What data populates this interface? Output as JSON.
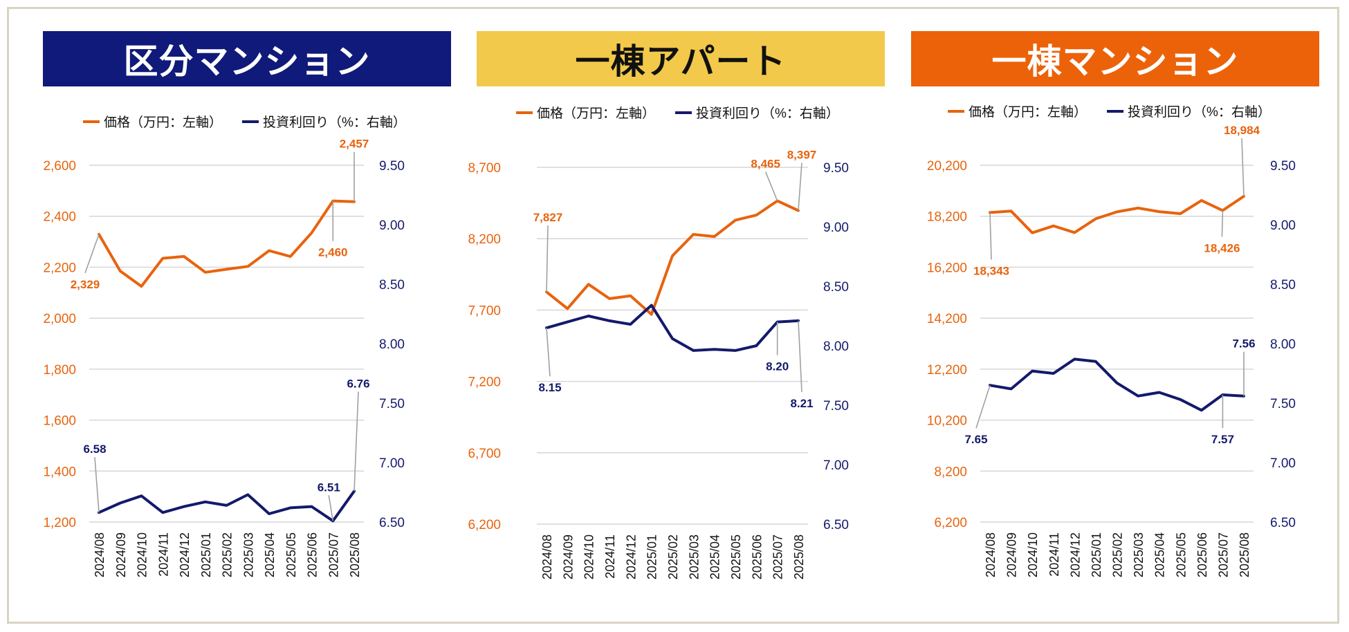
{
  "colors": {
    "frame": "#d9d3c3",
    "price_line": "#e8630d",
    "yield_line": "#131a6b",
    "grid": "#d6d6d6",
    "leader": "#a0a0a0"
  },
  "legend": {
    "price": "価格（万円：左軸）",
    "yield": "投資利回り（%：右軸）"
  },
  "panels": [
    {
      "title": "区分マンション",
      "title_bg": "#0f1a7a",
      "title_color": "#ffffff"
    },
    {
      "title": "一棟アパート",
      "title_bg": "#f2c94a",
      "title_color": "#111111"
    },
    {
      "title": "一棟マンション",
      "title_bg": "#ec6209",
      "title_color": "#ffffff"
    }
  ],
  "chart_data": [
    {
      "type": "line",
      "title": "区分マンション",
      "categories": [
        "2024/08",
        "2024/09",
        "2024/10",
        "2024/11",
        "2024/12",
        "2025/01",
        "2025/02",
        "2025/03",
        "2025/04",
        "2025/05",
        "2025/06",
        "2025/07",
        "2025/08"
      ],
      "left_axis": {
        "ticks": [
          "1,200",
          "1,400",
          "1,600",
          "1,800",
          "2,000",
          "2,200",
          "2,400",
          "2,600"
        ],
        "ylim": [
          1200,
          2600
        ]
      },
      "right_axis": {
        "ticks": [
          "6.50",
          "7.00",
          "7.50",
          "8.00",
          "8.50",
          "9.00",
          "9.50"
        ],
        "ylim": [
          6.5,
          9.5
        ]
      },
      "series": [
        {
          "name": "価格（万円：左軸）",
          "axis": "left",
          "values": [
            2329,
            2185,
            2125,
            2235,
            2242,
            2180,
            2192,
            2203,
            2265,
            2242,
            2335,
            2460,
            2457
          ]
        },
        {
          "name": "投資利回り（%：右軸）",
          "axis": "right",
          "values": [
            6.58,
            6.66,
            6.72,
            6.58,
            6.63,
            6.67,
            6.64,
            6.73,
            6.57,
            6.62,
            6.63,
            6.51,
            6.76
          ]
        }
      ],
      "data_labels": [
        {
          "series": 0,
          "index": 0,
          "text": "2,329"
        },
        {
          "series": 0,
          "index": 11,
          "text": "2,460"
        },
        {
          "series": 0,
          "index": 12,
          "text": "2,457"
        },
        {
          "series": 1,
          "index": 0,
          "text": "6.58"
        },
        {
          "series": 1,
          "index": 11,
          "text": "6.51"
        },
        {
          "series": 1,
          "index": 12,
          "text": "6.76"
        }
      ],
      "grid": true,
      "legend_position": "top"
    },
    {
      "type": "line",
      "title": "一棟アパート",
      "categories": [
        "2024/08",
        "2024/09",
        "2024/10",
        "2024/11",
        "2024/12",
        "2025/01",
        "2025/02",
        "2025/03",
        "2025/04",
        "2025/05",
        "2025/06",
        "2025/07",
        "2025/08"
      ],
      "left_axis": {
        "ticks": [
          "6,200",
          "6,700",
          "7,200",
          "7,700",
          "8,200",
          "8,700"
        ],
        "ylim": [
          6200,
          8700
        ]
      },
      "right_axis": {
        "ticks": [
          "6.50",
          "7.00",
          "7.50",
          "8.00",
          "8.50",
          "9.00",
          "9.50"
        ],
        "ylim": [
          6.5,
          9.5
        ]
      },
      "series": [
        {
          "name": "価格（万円：左軸）",
          "axis": "left",
          "values": [
            7827,
            7710,
            7880,
            7780,
            7800,
            7670,
            8080,
            8230,
            8215,
            8330,
            8365,
            8465,
            8397
          ]
        },
        {
          "name": "投資利回り（%：右軸）",
          "axis": "right",
          "values": [
            8.15,
            8.2,
            8.25,
            8.21,
            8.18,
            8.34,
            8.06,
            7.96,
            7.97,
            7.96,
            8.0,
            8.2,
            8.21
          ]
        }
      ],
      "data_labels": [
        {
          "series": 0,
          "index": 0,
          "text": "7,827"
        },
        {
          "series": 0,
          "index": 11,
          "text": "8,465"
        },
        {
          "series": 0,
          "index": 12,
          "text": "8,397"
        },
        {
          "series": 1,
          "index": 0,
          "text": "8.15"
        },
        {
          "series": 1,
          "index": 11,
          "text": "8.20"
        },
        {
          "series": 1,
          "index": 12,
          "text": "8.21"
        }
      ],
      "grid": true,
      "legend_position": "top"
    },
    {
      "type": "line",
      "title": "一棟マンション",
      "categories": [
        "2024/08",
        "2024/09",
        "2024/10",
        "2024/11",
        "2024/12",
        "2025/01",
        "2025/02",
        "2025/03",
        "2025/04",
        "2025/05",
        "2025/06",
        "2025/07",
        "2025/08"
      ],
      "left_axis": {
        "ticks": [
          "6,200",
          "8,200",
          "10,200",
          "12,200",
          "14,200",
          "16,200",
          "18,200",
          "20,200"
        ],
        "ylim": [
          6200,
          20200
        ]
      },
      "right_axis": {
        "ticks": [
          "6.50",
          "7.00",
          "7.50",
          "8.00",
          "8.50",
          "9.00",
          "9.50"
        ],
        "ylim": [
          6.5,
          9.5
        ]
      },
      "series": [
        {
          "name": "価格（万円：左軸）",
          "axis": "left",
          "values": [
            18343,
            18400,
            17550,
            17820,
            17560,
            18100,
            18370,
            18520,
            18380,
            18300,
            18820,
            18426,
            18984
          ]
        },
        {
          "name": "投資利回り（%：右軸）",
          "axis": "right",
          "values": [
            7.65,
            7.62,
            7.77,
            7.75,
            7.87,
            7.85,
            7.67,
            7.56,
            7.59,
            7.53,
            7.44,
            7.57,
            7.56
          ]
        }
      ],
      "data_labels": [
        {
          "series": 0,
          "index": 0,
          "text": "18,343"
        },
        {
          "series": 0,
          "index": 11,
          "text": "18,426"
        },
        {
          "series": 0,
          "index": 12,
          "text": "18,984"
        },
        {
          "series": 1,
          "index": 0,
          "text": "7.65"
        },
        {
          "series": 1,
          "index": 11,
          "text": "7.57"
        },
        {
          "series": 1,
          "index": 12,
          "text": "7.56"
        }
      ],
      "grid": true,
      "legend_position": "top"
    }
  ]
}
